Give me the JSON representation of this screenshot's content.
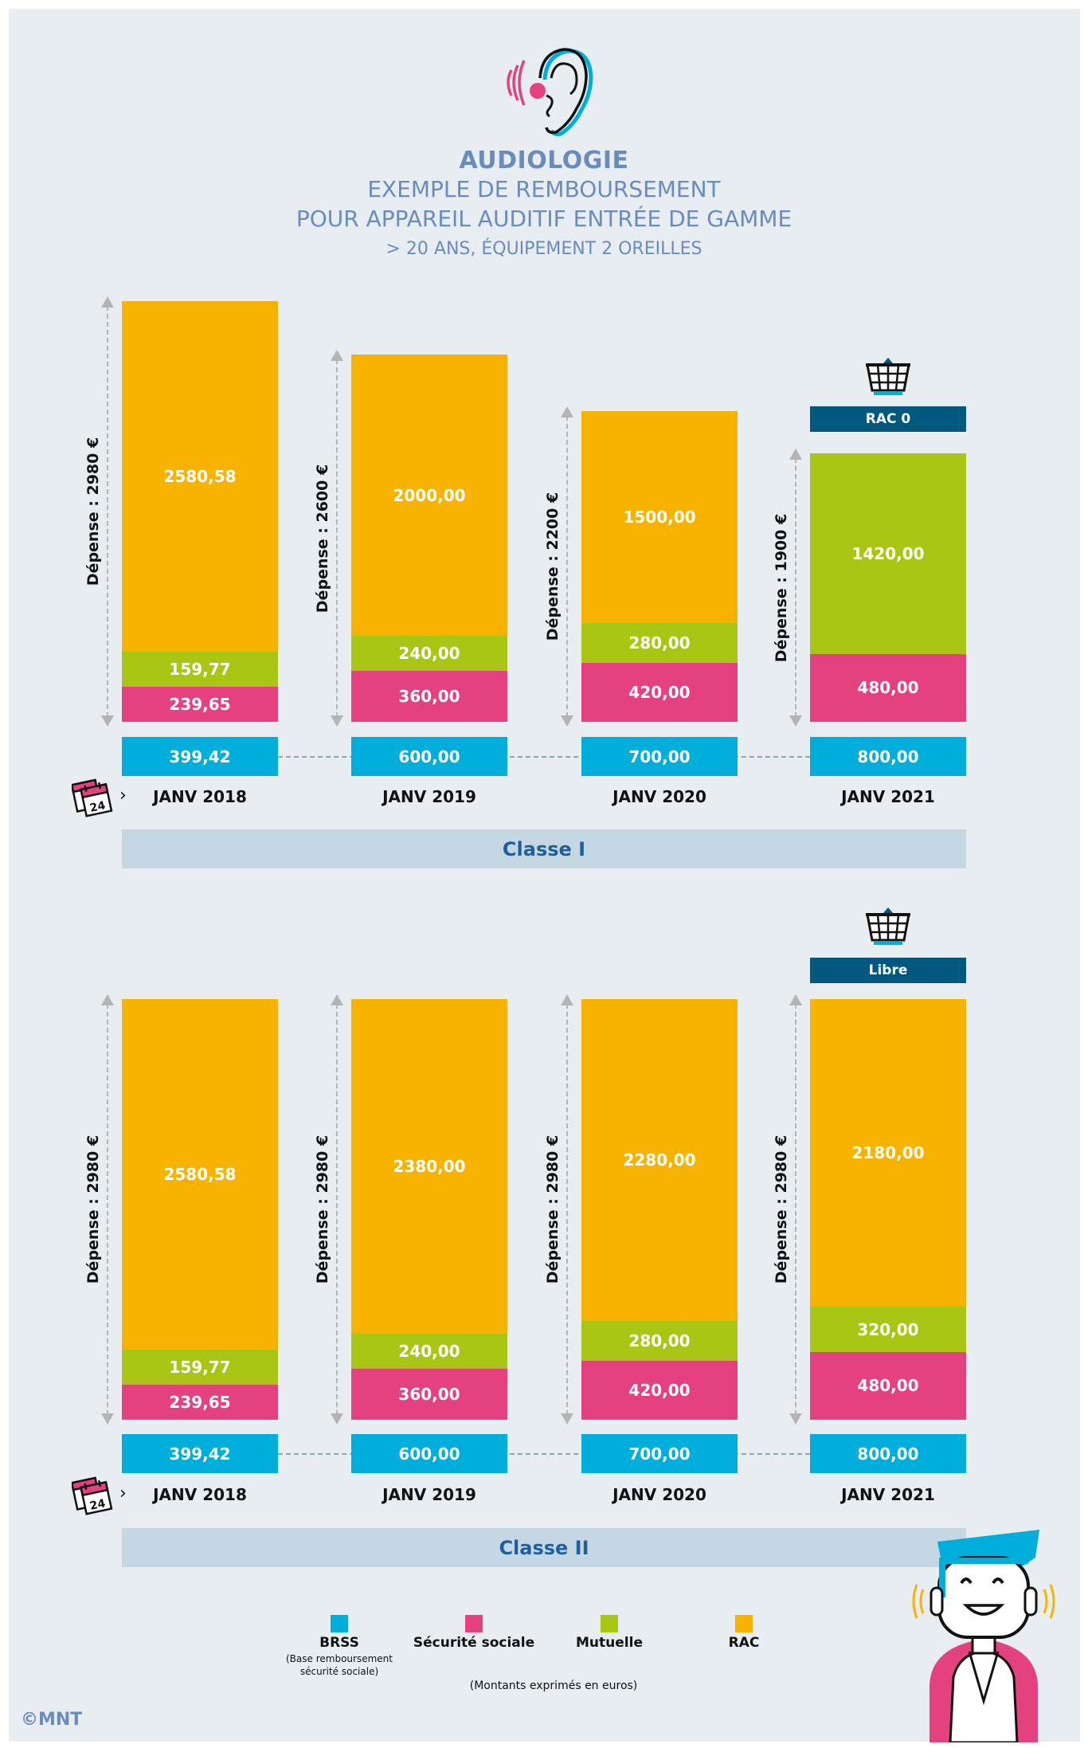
{
  "header": {
    "title": "AUDIOLOGIE",
    "line1": "EXEMPLE DE REMBOURSEMENT",
    "line2": "POUR APPAREIL AUDITIF ENTRÉE DE GAMME",
    "line3": "> 20 ANS, ÉQUIPEMENT 2 OREILLES"
  },
  "colors": {
    "brss": "#00aedb",
    "secu": "#e5407f",
    "mutuelle": "#a9c615",
    "rac": "#f8b200",
    "tag": "#00587f"
  },
  "chart_data": [
    {
      "type": "bar",
      "title": "Classe I",
      "categories": [
        "JANV 2018",
        "JANV 2019",
        "JANV 2020",
        "JANV 2021"
      ],
      "depense_labels": [
        "Dépense : 2980 €",
        "Dépense : 2600 €",
        "Dépense : 2200 €",
        "Dépense : 1900 €"
      ],
      "depense": [
        2980,
        2600,
        2200,
        1900
      ],
      "series": [
        {
          "name": "Sécurité sociale",
          "values": [
            239.65,
            360,
            420,
            480
          ],
          "labels": [
            "239,65",
            "360,00",
            "420,00",
            "480,00"
          ]
        },
        {
          "name": "Mutuelle",
          "values": [
            159.77,
            240,
            280,
            1420
          ],
          "labels": [
            "159,77",
            "240,00",
            "280,00",
            "1420,00"
          ]
        },
        {
          "name": "RAC",
          "values": [
            2580.58,
            2000,
            1500,
            0
          ],
          "labels": [
            "2580,58",
            "2000,00",
            "1500,00",
            ""
          ]
        }
      ],
      "brss": [
        "399,42",
        "600,00",
        "700,00",
        "800,00"
      ],
      "tag": "RAC 0"
    },
    {
      "type": "bar",
      "title": "Classe II",
      "categories": [
        "JANV 2018",
        "JANV 2019",
        "JANV 2020",
        "JANV 2021"
      ],
      "depense_labels": [
        "Dépense : 2980 €",
        "Dépense : 2980 €",
        "Dépense : 2980 €",
        "Dépense : 2980 €"
      ],
      "depense": [
        2980,
        2980,
        2980,
        2980
      ],
      "series": [
        {
          "name": "Sécurité sociale",
          "values": [
            239.65,
            360,
            420,
            480
          ],
          "labels": [
            "239,65",
            "360,00",
            "420,00",
            "480,00"
          ]
        },
        {
          "name": "Mutuelle",
          "values": [
            159.77,
            240,
            280,
            320
          ],
          "labels": [
            "159,77",
            "240,00",
            "280,00",
            "320,00"
          ]
        },
        {
          "name": "RAC",
          "values": [
            2580.58,
            2380,
            2280,
            2180
          ],
          "labels": [
            "2580,58",
            "2380,00",
            "2280,00",
            "2180,00"
          ]
        }
      ],
      "brss": [
        "399,42",
        "600,00",
        "700,00",
        "800,00"
      ],
      "tag": "Libre"
    }
  ],
  "legend": {
    "items": [
      {
        "label": "BRSS",
        "note1": "(Base remboursement",
        "note2": "sécurité sociale)"
      },
      {
        "label": "Sécurité sociale"
      },
      {
        "label": "Mutuelle"
      },
      {
        "label": "RAC"
      }
    ],
    "note": "(Montants exprimés en euros)"
  },
  "calendar_day": "24",
  "copyright": "©MNT"
}
